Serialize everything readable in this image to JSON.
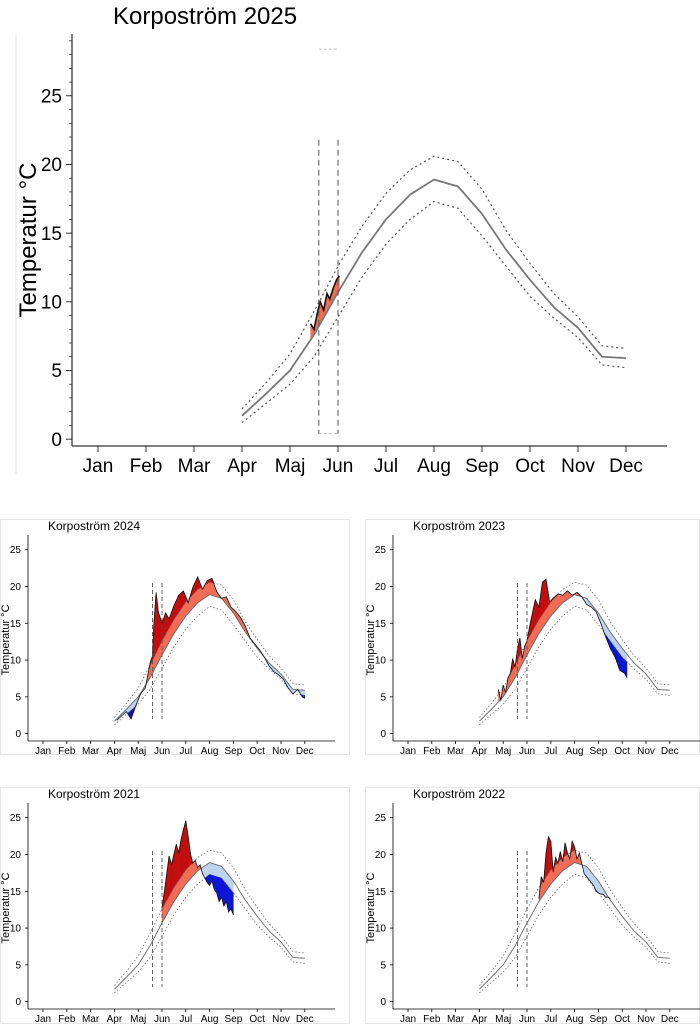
{
  "chart_data": [
    {
      "type": "area",
      "title": "Korpoström 2025",
      "ylabel": "Temperatur °C",
      "xlabel": "",
      "ylim": [
        -0.5,
        29.5
      ],
      "yticks": [
        0,
        5,
        10,
        15,
        20,
        25
      ],
      "months": [
        "Jan",
        "Feb",
        "Mar",
        "Apr",
        "Maj",
        "Jun",
        "Jul",
        "Aug",
        "Sep",
        "Oct",
        "Nov",
        "Dec"
      ],
      "grid": false,
      "vlines_month": [
        4.6,
        5.0
      ],
      "normal": {
        "x": [
          3.0,
          3.5,
          4.0,
          4.5,
          5.0,
          5.5,
          6.0,
          6.5,
          7.0,
          7.5,
          8.0,
          8.5,
          9.0,
          9.5,
          10.0,
          10.5,
          11.0
        ],
        "y": [
          1.7,
          3.3,
          5.0,
          7.6,
          10.7,
          13.6,
          16.0,
          17.8,
          18.9,
          18.4,
          16.4,
          13.8,
          11.6,
          9.6,
          8.1,
          6.0,
          5.9
        ]
      },
      "upper": {
        "x": [
          3.0,
          3.5,
          4.0,
          4.5,
          5.0,
          5.5,
          6.0,
          6.5,
          7.0,
          7.5,
          8.0,
          8.5,
          9.0,
          9.5,
          10.0,
          10.5,
          11.0
        ],
        "y": [
          2.2,
          4.1,
          6.2,
          9.3,
          12.6,
          15.5,
          17.9,
          19.6,
          20.6,
          20.2,
          18.2,
          15.2,
          12.8,
          10.6,
          8.9,
          6.8,
          6.6
        ]
      },
      "lower": {
        "x": [
          3.0,
          3.5,
          4.0,
          4.5,
          5.0,
          5.5,
          6.0,
          6.5,
          7.0,
          7.5,
          8.0,
          8.5,
          9.0,
          9.5,
          10.0,
          10.5,
          11.0
        ],
        "y": [
          1.2,
          2.6,
          4.0,
          6.0,
          8.9,
          11.8,
          14.2,
          16.0,
          17.3,
          16.8,
          14.8,
          12.6,
          10.4,
          8.8,
          7.4,
          5.4,
          5.2
        ]
      },
      "observed": {
        "x": [
          4.43,
          4.5,
          4.57,
          4.63,
          4.7,
          4.77,
          4.83,
          4.9,
          4.97,
          5.03
        ],
        "y": [
          8.4,
          8.0,
          9.2,
          10.0,
          9.4,
          10.6,
          10.2,
          11.0,
          11.6,
          11.9
        ]
      }
    },
    {
      "type": "area",
      "title": "Korpoström 2024",
      "ylabel": "Temperatur °C",
      "ylim": [
        -1,
        27
      ],
      "yticks": [
        0,
        5,
        10,
        15,
        20,
        25
      ],
      "months": [
        "Jan",
        "Feb",
        "Mar",
        "Apr",
        "Maj",
        "Jun",
        "Jul",
        "Aug",
        "Sep",
        "Oct",
        "Nov",
        "Dec"
      ],
      "grid": false,
      "vlines_month": [
        4.6,
        5.0
      ],
      "normal": {
        "x": [
          3.0,
          3.5,
          4.0,
          4.5,
          5.0,
          5.5,
          6.0,
          6.5,
          7.0,
          7.5,
          8.0,
          8.5,
          9.0,
          9.5,
          10.0,
          10.5,
          11.0
        ],
        "y": [
          1.7,
          3.3,
          5.0,
          7.6,
          10.7,
          13.6,
          16.0,
          17.8,
          18.9,
          18.4,
          16.4,
          13.8,
          11.6,
          9.6,
          8.1,
          6.0,
          5.9
        ]
      },
      "upper": {
        "x": [
          3.0,
          3.5,
          4.0,
          4.5,
          5.0,
          5.5,
          6.0,
          6.5,
          7.0,
          7.5,
          8.0,
          8.5,
          9.0,
          9.5,
          10.0,
          10.5,
          11.0
        ],
        "y": [
          2.2,
          4.1,
          6.2,
          9.3,
          12.6,
          15.5,
          17.9,
          19.6,
          20.6,
          20.2,
          18.2,
          15.2,
          12.8,
          10.6,
          8.9,
          6.8,
          6.6
        ]
      },
      "lower": {
        "x": [
          3.0,
          3.5,
          4.0,
          4.5,
          5.0,
          5.5,
          6.0,
          6.5,
          7.0,
          7.5,
          8.0,
          8.5,
          9.0,
          9.5,
          10.0,
          10.5,
          11.0
        ],
        "y": [
          1.2,
          2.6,
          4.0,
          6.0,
          8.9,
          11.8,
          14.2,
          16.0,
          17.3,
          16.8,
          14.8,
          12.6,
          10.4,
          8.8,
          7.4,
          5.4,
          5.2
        ]
      },
      "observed": {
        "x": [
          3.1,
          3.3,
          3.5,
          3.7,
          3.9,
          4.1,
          4.3,
          4.5,
          4.6,
          4.65,
          4.75,
          4.85,
          5.0,
          5.15,
          5.3,
          5.5,
          5.7,
          5.9,
          6.1,
          6.3,
          6.5,
          6.7,
          6.9,
          7.1,
          7.3,
          7.5,
          7.7,
          7.9,
          8.1,
          8.3,
          8.5,
          8.7,
          8.9,
          9.1,
          9.3,
          9.5,
          9.7,
          9.9,
          10.1,
          10.3,
          10.5,
          10.7,
          10.9,
          11.0
        ],
        "y": [
          1.8,
          2.4,
          3.0,
          2.0,
          3.8,
          5.4,
          6.2,
          9.6,
          10.6,
          14.5,
          19.2,
          16.5,
          15.0,
          16.4,
          15.6,
          17.4,
          18.8,
          19.4,
          17.8,
          19.9,
          21.3,
          19.6,
          20.8,
          21.1,
          19.3,
          18.4,
          18.6,
          17.2,
          16.6,
          15.8,
          14.6,
          13.0,
          12.2,
          11.4,
          10.4,
          9.2,
          8.4,
          8.0,
          7.4,
          6.2,
          5.4,
          6.0,
          5.0,
          4.8
        ]
      }
    },
    {
      "type": "area",
      "title": "Korpoström 2023",
      "ylabel": "Temperatur °C",
      "ylim": [
        -1,
        27
      ],
      "yticks": [
        0,
        5,
        10,
        15,
        20,
        25
      ],
      "months": [
        "Jan",
        "Feb",
        "Mar",
        "Apr",
        "Maj",
        "Jun",
        "Jul",
        "Aug",
        "Sep",
        "Oct",
        "Nov",
        "Dec"
      ],
      "grid": false,
      "vlines_month": [
        4.6,
        5.0
      ],
      "normal": {
        "x": [
          3.0,
          3.5,
          4.0,
          4.5,
          5.0,
          5.5,
          6.0,
          6.5,
          7.0,
          7.5,
          8.0,
          8.5,
          9.0,
          9.5,
          10.0,
          10.5,
          11.0
        ],
        "y": [
          1.7,
          3.3,
          5.0,
          7.6,
          10.7,
          13.6,
          16.0,
          17.8,
          18.9,
          18.4,
          16.4,
          13.8,
          11.6,
          9.6,
          8.1,
          6.0,
          5.9
        ]
      },
      "upper": {
        "x": [
          3.0,
          3.5,
          4.0,
          4.5,
          5.0,
          5.5,
          6.0,
          6.5,
          7.0,
          7.5,
          8.0,
          8.5,
          9.0,
          9.5,
          10.0,
          10.5,
          11.0
        ],
        "y": [
          2.2,
          4.1,
          6.2,
          9.3,
          12.6,
          15.5,
          17.9,
          19.6,
          20.6,
          20.2,
          18.2,
          15.2,
          12.8,
          10.6,
          8.9,
          6.8,
          6.6
        ]
      },
      "lower": {
        "x": [
          3.0,
          3.5,
          4.0,
          4.5,
          5.0,
          5.5,
          6.0,
          6.5,
          7.0,
          7.5,
          8.0,
          8.5,
          9.0,
          9.5,
          10.0,
          10.5,
          11.0
        ],
        "y": [
          1.2,
          2.6,
          4.0,
          6.0,
          8.9,
          11.8,
          14.2,
          16.0,
          17.3,
          16.8,
          14.8,
          12.6,
          10.4,
          8.8,
          7.4,
          5.4,
          5.2
        ]
      },
      "observed": {
        "x": [
          3.8,
          3.9,
          4.0,
          4.1,
          4.2,
          4.3,
          4.4,
          4.5,
          4.6,
          4.7,
          4.8,
          4.9,
          5.0,
          5.1,
          5.2,
          5.35,
          5.5,
          5.65,
          5.8,
          5.95,
          6.1,
          6.3,
          6.5,
          6.7,
          6.9,
          7.1,
          7.3,
          7.5,
          7.7,
          7.9,
          8.1,
          8.3,
          8.5,
          8.7,
          8.9,
          9.1,
          9.2
        ],
        "y": [
          6.0,
          4.5,
          6.6,
          5.6,
          7.6,
          8.2,
          10.2,
          9.0,
          11.6,
          13.0,
          10.2,
          11.8,
          12.6,
          14.4,
          16.0,
          18.2,
          17.2,
          20.6,
          21.0,
          17.9,
          18.4,
          19.0,
          18.8,
          19.4,
          18.8,
          19.2,
          18.6,
          17.6,
          17.2,
          16.6,
          15.0,
          13.2,
          11.6,
          10.4,
          8.6,
          8.2,
          7.6
        ]
      }
    },
    {
      "type": "area",
      "title": "Korpoström 2021",
      "ylabel": "Temperatur °C",
      "ylim": [
        -1,
        27
      ],
      "yticks": [
        0,
        5,
        10,
        15,
        20,
        25
      ],
      "months": [
        "Jan",
        "Feb",
        "Mar",
        "Apr",
        "Maj",
        "Jun",
        "Jul",
        "Aug",
        "Sep",
        "Oct",
        "Nov",
        "Dec"
      ],
      "grid": false,
      "vlines_month": [
        4.6,
        5.0
      ],
      "normal": {
        "x": [
          3.0,
          3.5,
          4.0,
          4.5,
          5.0,
          5.5,
          6.0,
          6.5,
          7.0,
          7.5,
          8.0,
          8.5,
          9.0,
          9.5,
          10.0,
          10.5,
          11.0
        ],
        "y": [
          1.7,
          3.3,
          5.0,
          7.6,
          10.7,
          13.6,
          16.0,
          17.8,
          18.9,
          18.4,
          16.4,
          13.8,
          11.6,
          9.6,
          8.1,
          6.0,
          5.9
        ]
      },
      "upper": {
        "x": [
          3.0,
          3.5,
          4.0,
          4.5,
          5.0,
          5.5,
          6.0,
          6.5,
          7.0,
          7.5,
          8.0,
          8.5,
          9.0,
          9.5,
          10.0,
          10.5,
          11.0
        ],
        "y": [
          2.2,
          4.1,
          6.2,
          9.3,
          12.6,
          15.5,
          17.9,
          19.6,
          20.6,
          20.2,
          18.2,
          15.2,
          12.8,
          10.6,
          8.9,
          6.8,
          6.6
        ]
      },
      "lower": {
        "x": [
          3.0,
          3.5,
          4.0,
          4.5,
          5.0,
          5.5,
          6.0,
          6.5,
          7.0,
          7.5,
          8.0,
          8.5,
          9.0,
          9.5,
          10.0,
          10.5,
          11.0
        ],
        "y": [
          1.2,
          2.6,
          4.0,
          6.0,
          8.9,
          11.8,
          14.2,
          16.0,
          17.3,
          16.8,
          14.8,
          12.6,
          10.4,
          8.8,
          7.4,
          5.4,
          5.2
        ]
      },
      "observed": {
        "x": [
          5.0,
          5.1,
          5.2,
          5.3,
          5.4,
          5.5,
          5.6,
          5.7,
          5.8,
          5.9,
          6.0,
          6.1,
          6.2,
          6.3,
          6.4,
          6.5,
          6.6,
          6.7,
          6.8,
          6.9,
          7.0,
          7.1,
          7.2,
          7.3,
          7.4,
          7.5,
          7.6,
          7.7,
          7.8,
          7.9,
          8.0
        ],
        "y": [
          12.8,
          15.0,
          17.4,
          19.8,
          18.6,
          20.0,
          21.4,
          20.2,
          22.0,
          23.4,
          24.6,
          22.4,
          20.0,
          18.8,
          19.2,
          18.2,
          18.6,
          17.4,
          16.8,
          16.2,
          15.8,
          16.4,
          15.2,
          14.8,
          13.6,
          14.2,
          13.0,
          13.6,
          12.2,
          12.6,
          11.8
        ]
      }
    },
    {
      "type": "area",
      "title": "Korpoström 2022",
      "ylabel": "Temperatur °C",
      "ylim": [
        -1,
        27
      ],
      "yticks": [
        0,
        5,
        10,
        15,
        20,
        25
      ],
      "months": [
        "Jan",
        "Feb",
        "Mar",
        "Apr",
        "Maj",
        "Jun",
        "Jul",
        "Aug",
        "Sep",
        "Oct",
        "Nov",
        "Dec"
      ],
      "grid": false,
      "vlines_month": [
        4.6,
        5.0
      ],
      "normal": {
        "x": [
          3.0,
          3.5,
          4.0,
          4.5,
          5.0,
          5.5,
          6.0,
          6.5,
          7.0,
          7.5,
          8.0,
          8.5,
          9.0,
          9.5,
          10.0,
          10.5,
          11.0
        ],
        "y": [
          1.7,
          3.3,
          5.0,
          7.6,
          10.7,
          13.6,
          16.0,
          17.8,
          18.9,
          18.4,
          16.4,
          13.8,
          11.6,
          9.6,
          8.1,
          6.0,
          5.9
        ]
      },
      "upper": {
        "x": [
          3.0,
          3.5,
          4.0,
          4.5,
          5.0,
          5.5,
          6.0,
          6.5,
          7.0,
          7.5,
          8.0,
          8.5,
          9.0,
          9.5,
          10.0,
          10.5,
          11.0
        ],
        "y": [
          2.2,
          4.1,
          6.2,
          9.3,
          12.6,
          15.5,
          17.9,
          19.6,
          20.6,
          20.2,
          18.2,
          15.2,
          12.8,
          10.6,
          8.9,
          6.8,
          6.6
        ]
      },
      "lower": {
        "x": [
          3.0,
          3.5,
          4.0,
          4.5,
          5.0,
          5.5,
          6.0,
          6.5,
          7.0,
          7.5,
          8.0,
          8.5,
          9.0,
          9.5,
          10.0,
          10.5,
          11.0
        ],
        "y": [
          1.2,
          2.6,
          4.0,
          6.0,
          8.9,
          11.8,
          14.2,
          16.0,
          17.3,
          16.8,
          14.8,
          12.6,
          10.4,
          8.8,
          7.4,
          5.4,
          5.2
        ]
      },
      "observed": {
        "x": [
          5.5,
          5.6,
          5.7,
          5.8,
          5.9,
          6.0,
          6.1,
          6.2,
          6.3,
          6.4,
          6.5,
          6.6,
          6.7,
          6.8,
          6.9,
          7.0,
          7.1,
          7.2,
          7.3,
          7.4,
          7.5,
          7.6,
          7.7,
          7.8,
          7.9,
          8.0,
          8.1,
          8.2,
          8.3,
          8.4,
          8.5
        ],
        "y": [
          14.0,
          17.0,
          16.2,
          20.2,
          22.4,
          21.8,
          17.6,
          19.6,
          18.8,
          20.4,
          19.0,
          21.6,
          20.2,
          19.4,
          21.8,
          21.0,
          19.4,
          20.2,
          18.8,
          17.4,
          17.0,
          16.6,
          16.2,
          15.8,
          15.0,
          14.8,
          14.6,
          14.6,
          14.2,
          14.2,
          14.0
        ]
      }
    }
  ]
}
